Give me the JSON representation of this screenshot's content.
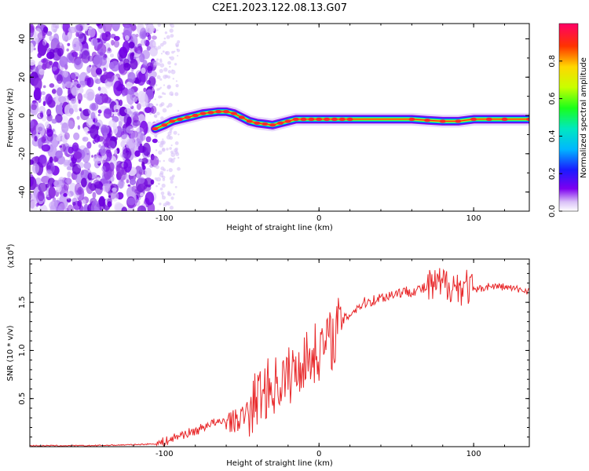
{
  "title": "C2E1.2023.122.08.13.G07",
  "chart_data": [
    {
      "type": "heatmap",
      "xlabel": "Height of straight line (km)",
      "ylabel": "Frequency (Hz)",
      "xlim": [
        -187,
        136
      ],
      "ylim": [
        -50,
        48
      ],
      "xticks": [
        -100,
        0,
        100
      ],
      "yticks": [
        -40,
        -20,
        0,
        20,
        40
      ],
      "noise_region_x": [
        -187,
        -106
      ],
      "signal_track": {
        "x": [
          -106,
          -100,
          -95,
          -90,
          -85,
          -80,
          -75,
          -70,
          -65,
          -60,
          -55,
          -50,
          -45,
          -40,
          -35,
          -30,
          -25,
          -20,
          -15,
          -10,
          -5,
          0,
          5,
          10,
          15,
          20,
          40,
          60,
          70,
          80,
          90,
          100,
          110,
          120,
          136
        ],
        "y": [
          -7,
          -5,
          -3,
          -2,
          -1,
          0,
          1,
          1.5,
          2,
          2,
          1,
          -1,
          -3,
          -4,
          -4.5,
          -5,
          -4,
          -3,
          -2,
          -2,
          -2,
          -2,
          -2,
          -2,
          -2,
          -2,
          -2,
          -2,
          -2.5,
          -3,
          -3,
          -2,
          -2,
          -2,
          -2
        ]
      },
      "colorbar": {
        "label": "Normalized spectral amplitude",
        "range": [
          0,
          1
        ],
        "ticks": [
          "0.0",
          "0.2",
          "0.4",
          "0.6",
          "0.8"
        ]
      }
    },
    {
      "type": "line",
      "xlabel": "Height of straight line (km)",
      "ylabel": "SNR (10 * v/v)",
      "y_multiplier": "(x10",
      "y_multiplier_exp": "4",
      "y_multiplier_close": ")",
      "xlim": [
        -187,
        136
      ],
      "ylim": [
        0,
        1.95
      ],
      "xticks": [
        -100,
        0,
        100
      ],
      "yticks": [
        "0.5",
        "1.0",
        "1.5"
      ],
      "series": [
        {
          "color": "#e8292b",
          "x": [
            -187,
            -150,
            -120,
            -105,
            -100,
            -95,
            -90,
            -85,
            -80,
            -75,
            -70,
            -65,
            -60,
            -55,
            -50,
            -45,
            -42,
            -38,
            -35,
            -30,
            -25,
            -20,
            -17,
            -15,
            -12,
            -10,
            -8,
            -5,
            -2,
            0,
            3,
            6,
            9,
            12,
            15,
            20,
            25,
            30,
            35,
            40,
            45,
            50,
            60,
            70,
            80,
            85,
            90,
            95,
            100,
            110,
            120,
            130,
            136
          ],
          "y": [
            0.01,
            0.01,
            0.02,
            0.03,
            0.05,
            0.08,
            0.12,
            0.14,
            0.16,
            0.2,
            0.25,
            0.24,
            0.28,
            0.26,
            0.3,
            0.38,
            0.45,
            0.55,
            0.6,
            0.62,
            0.68,
            0.72,
            0.8,
            0.75,
            0.85,
            0.92,
            0.9,
            0.95,
            0.98,
            1.0,
            1.05,
            1.1,
            1.12,
            1.25,
            1.3,
            1.38,
            1.45,
            1.5,
            1.52,
            1.55,
            1.57,
            1.6,
            1.62,
            1.65,
            1.68,
            1.7,
            1.65,
            1.68,
            1.62,
            1.67,
            1.66,
            1.63,
            1.62
          ]
        }
      ]
    }
  ]
}
